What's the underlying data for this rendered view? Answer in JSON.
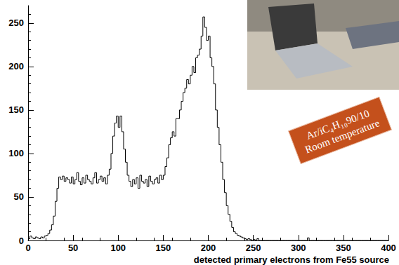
{
  "chart_data": {
    "type": "histogram",
    "x_label": "detected primary electrons from Fe55 source",
    "annotations": [
      "Ar/iC₄H₁₀90/10",
      "Room temperature"
    ],
    "bins": [
      0,
      2,
      4,
      6,
      8,
      10,
      12,
      14,
      16,
      18,
      20,
      22,
      24,
      26,
      28,
      30,
      32,
      34,
      36,
      38,
      40,
      42,
      44,
      46,
      48,
      50,
      52,
      54,
      56,
      58,
      60,
      62,
      64,
      66,
      68,
      70,
      72,
      74,
      76,
      78,
      80,
      82,
      84,
      86,
      88,
      90,
      92,
      94,
      96,
      98,
      100,
      102,
      104,
      106,
      108,
      110,
      112,
      114,
      116,
      118,
      120,
      122,
      124,
      126,
      128,
      130,
      132,
      134,
      136,
      138,
      140,
      142,
      144,
      146,
      148,
      150,
      152,
      154,
      156,
      158,
      160,
      162,
      164,
      166,
      168,
      170,
      172,
      174,
      176,
      178,
      180,
      182,
      184,
      186,
      188,
      190,
      192,
      194,
      196,
      198,
      200,
      202,
      204,
      206,
      208,
      210,
      212,
      214,
      216,
      218,
      220,
      222,
      224,
      226,
      228,
      230,
      232,
      234,
      236,
      238,
      240,
      242,
      244,
      246,
      248,
      250,
      252,
      254,
      256,
      258,
      260,
      262,
      264,
      266,
      268,
      270,
      272,
      274,
      276,
      278,
      280,
      282,
      284,
      286,
      288,
      290,
      292,
      294,
      296,
      298,
      300,
      302,
      304,
      306,
      308,
      310,
      312,
      314,
      316,
      318,
      320,
      322,
      324,
      326,
      328,
      330,
      332,
      334,
      336,
      338,
      340,
      342,
      344,
      346,
      348,
      350,
      352,
      354,
      356,
      358,
      360,
      362,
      364,
      366,
      368,
      370,
      372,
      374,
      376,
      378,
      380,
      382,
      384,
      386,
      388,
      390,
      392,
      394,
      396,
      398,
      400
    ],
    "counts": [
      2,
      5,
      3,
      2,
      4,
      3,
      2,
      4,
      3,
      5,
      6,
      8,
      12,
      18,
      28,
      45,
      60,
      73,
      70,
      74,
      68,
      72,
      70,
      66,
      73,
      65,
      70,
      78,
      68,
      64,
      72,
      66,
      75,
      70,
      68,
      65,
      72,
      78,
      66,
      70,
      74,
      68,
      72,
      65,
      75,
      82,
      100,
      120,
      135,
      143,
      130,
      143,
      125,
      105,
      90,
      75,
      68,
      62,
      70,
      65,
      72,
      60,
      75,
      68,
      66,
      70,
      62,
      74,
      68,
      65,
      70,
      72,
      66,
      75,
      70,
      75,
      85,
      95,
      110,
      118,
      125,
      120,
      140,
      140,
      150,
      160,
      170,
      175,
      185,
      180,
      190,
      200,
      193,
      210,
      213,
      220,
      235,
      257,
      245,
      230,
      235,
      210,
      200,
      180,
      150,
      130,
      110,
      90,
      70,
      55,
      40,
      30,
      22,
      15,
      10,
      8,
      6,
      5,
      4,
      3,
      2,
      1,
      2,
      1,
      0,
      1,
      0,
      2,
      0,
      0,
      0,
      0,
      0,
      0,
      0,
      0,
      0,
      0,
      0,
      0,
      0,
      0,
      0,
      0,
      0,
      0,
      0,
      0,
      0,
      0,
      0,
      0,
      0,
      0,
      0,
      3,
      0,
      0,
      0,
      0,
      0,
      0,
      0,
      0,
      0,
      0,
      0,
      0,
      0,
      0,
      0,
      0,
      0,
      0,
      0,
      0,
      0,
      0,
      0,
      0,
      0,
      0,
      0,
      0,
      0,
      0,
      0,
      0,
      0,
      0,
      0,
      0,
      0,
      0,
      0,
      0,
      0,
      0,
      0,
      0,
      0,
      0,
      0,
      0,
      0
    ],
    "color": "#000000",
    "xlim": [
      0,
      400
    ],
    "xticks": [
      0,
      50,
      100,
      150,
      200,
      250,
      300,
      350,
      400
    ],
    "ylim": [
      0,
      270
    ],
    "yticks": [
      0,
      50,
      100,
      150,
      200,
      250
    ],
    "grid": false
  }
}
